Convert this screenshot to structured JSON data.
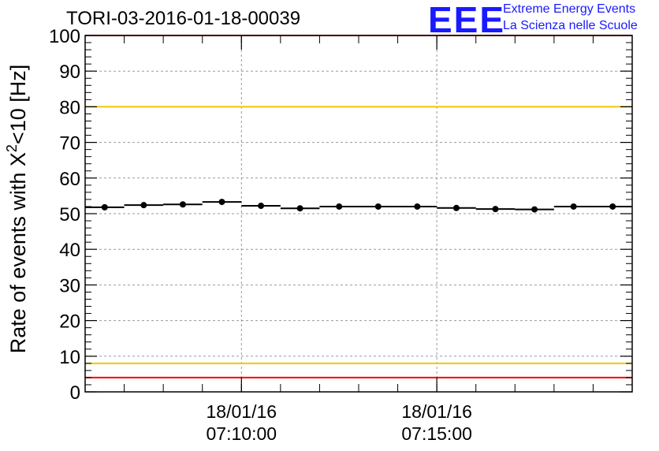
{
  "header": {
    "title": "TORI-03-2016-01-18-00039",
    "logo_text": "EEE",
    "logo_line1": "Extreme Energy Events",
    "logo_line2": "La Scienza nelle Scuole"
  },
  "colors": {
    "logo": "#1a1aff",
    "upper_limit_line": "#ff0000",
    "warning_line": "#f0c800",
    "lower_limit_line": "#ff0000",
    "data": "#000000",
    "grid": "#999999"
  },
  "chart_data": {
    "type": "scatter",
    "title": "TORI-03-2016-01-18-00039",
    "ylabel_main": "Rate of events with X",
    "ylabel_sup": "2",
    "ylabel_tail": "<10 [Hz]",
    "ylabel": "Rate of events with X^2<10 [Hz]",
    "xlabel": "",
    "ylim": [
      0,
      100
    ],
    "xlim_minutes": [
      6.0,
      20.0
    ],
    "y_ticks": [
      "0",
      "10",
      "20",
      "30",
      "40",
      "50",
      "60",
      "70",
      "80",
      "90",
      "100"
    ],
    "x_ticks": [
      {
        "minute": 10,
        "date": "18/01/16",
        "time": "07:10:00"
      },
      {
        "minute": 15,
        "date": "18/01/16",
        "time": "07:15:00"
      }
    ],
    "reference_lines": [
      {
        "name": "upper-red-line",
        "y": 100,
        "color": "#ff0000"
      },
      {
        "name": "upper-yellow-line",
        "y": 80,
        "color": "#f0c800"
      },
      {
        "name": "lower-yellow-line",
        "y": 8,
        "color": "#f0c800"
      },
      {
        "name": "lower-red-line",
        "y": 4,
        "color": "#ff0000"
      }
    ],
    "bin_width_minutes": 1.0,
    "points": [
      {
        "x": 6.5,
        "y": 51.8
      },
      {
        "x": 7.5,
        "y": 52.4
      },
      {
        "x": 8.5,
        "y": 52.6
      },
      {
        "x": 9.5,
        "y": 53.3
      },
      {
        "x": 10.5,
        "y": 52.2
      },
      {
        "x": 11.5,
        "y": 51.5
      },
      {
        "x": 12.5,
        "y": 52.0
      },
      {
        "x": 13.5,
        "y": 52.0
      },
      {
        "x": 14.5,
        "y": 52.0
      },
      {
        "x": 15.5,
        "y": 51.6
      },
      {
        "x": 16.5,
        "y": 51.3
      },
      {
        "x": 17.5,
        "y": 51.2
      },
      {
        "x": 18.5,
        "y": 52.0
      },
      {
        "x": 19.5,
        "y": 52.0
      }
    ],
    "grid": true
  }
}
